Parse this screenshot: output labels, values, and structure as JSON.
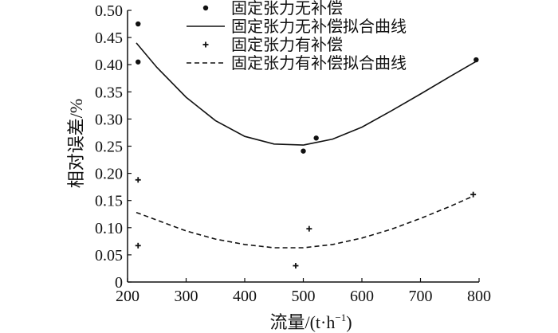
{
  "chart_data": {
    "type": "scatter",
    "xlabel": "流量/(t·h",
    "xlabel_sup": "−1",
    "xlabel_close": ")",
    "ylabel": "相对误差/%",
    "xlim": [
      200,
      800
    ],
    "ylim": [
      0,
      0.5
    ],
    "x_ticks": [
      "200",
      "300",
      "400",
      "500",
      "600",
      "700",
      "800"
    ],
    "y_ticks": [
      "0",
      "0.05",
      "0.10",
      "0.15",
      "0.20",
      "0.25",
      "0.30",
      "0.35",
      "0.40",
      "0.45",
      "0.50"
    ],
    "legend_position": "top-center",
    "series": [
      {
        "name": "固定张力无补偿",
        "kind": "points",
        "marker": "dot",
        "points": [
          [
            218,
            0.475
          ],
          [
            218,
            0.405
          ],
          [
            500,
            0.241
          ],
          [
            522,
            0.265
          ],
          [
            795,
            0.409
          ]
        ]
      },
      {
        "name": "固定张力无补偿拟合曲线",
        "kind": "fit",
        "line_style": "solid",
        "points": [
          [
            215,
            0.44
          ],
          [
            250,
            0.395
          ],
          [
            300,
            0.34
          ],
          [
            350,
            0.297
          ],
          [
            400,
            0.268
          ],
          [
            450,
            0.254
          ],
          [
            500,
            0.252
          ],
          [
            550,
            0.263
          ],
          [
            600,
            0.285
          ],
          [
            650,
            0.315
          ],
          [
            700,
            0.346
          ],
          [
            750,
            0.378
          ],
          [
            795,
            0.406
          ]
        ]
      },
      {
        "name": "固定张力有补偿",
        "kind": "points",
        "marker": "plus",
        "points": [
          [
            218,
            0.188
          ],
          [
            218,
            0.067
          ],
          [
            487,
            0.03
          ],
          [
            510,
            0.098
          ],
          [
            790,
            0.161
          ]
        ]
      },
      {
        "name": "固定张力有补偿拟合曲线",
        "kind": "fit",
        "line_style": "dashed",
        "points": [
          [
            215,
            0.128
          ],
          [
            250,
            0.114
          ],
          [
            300,
            0.094
          ],
          [
            350,
            0.079
          ],
          [
            400,
            0.069
          ],
          [
            450,
            0.063
          ],
          [
            500,
            0.063
          ],
          [
            550,
            0.069
          ],
          [
            600,
            0.081
          ],
          [
            650,
            0.097
          ],
          [
            700,
            0.117
          ],
          [
            750,
            0.139
          ],
          [
            790,
            0.158
          ]
        ]
      }
    ]
  }
}
